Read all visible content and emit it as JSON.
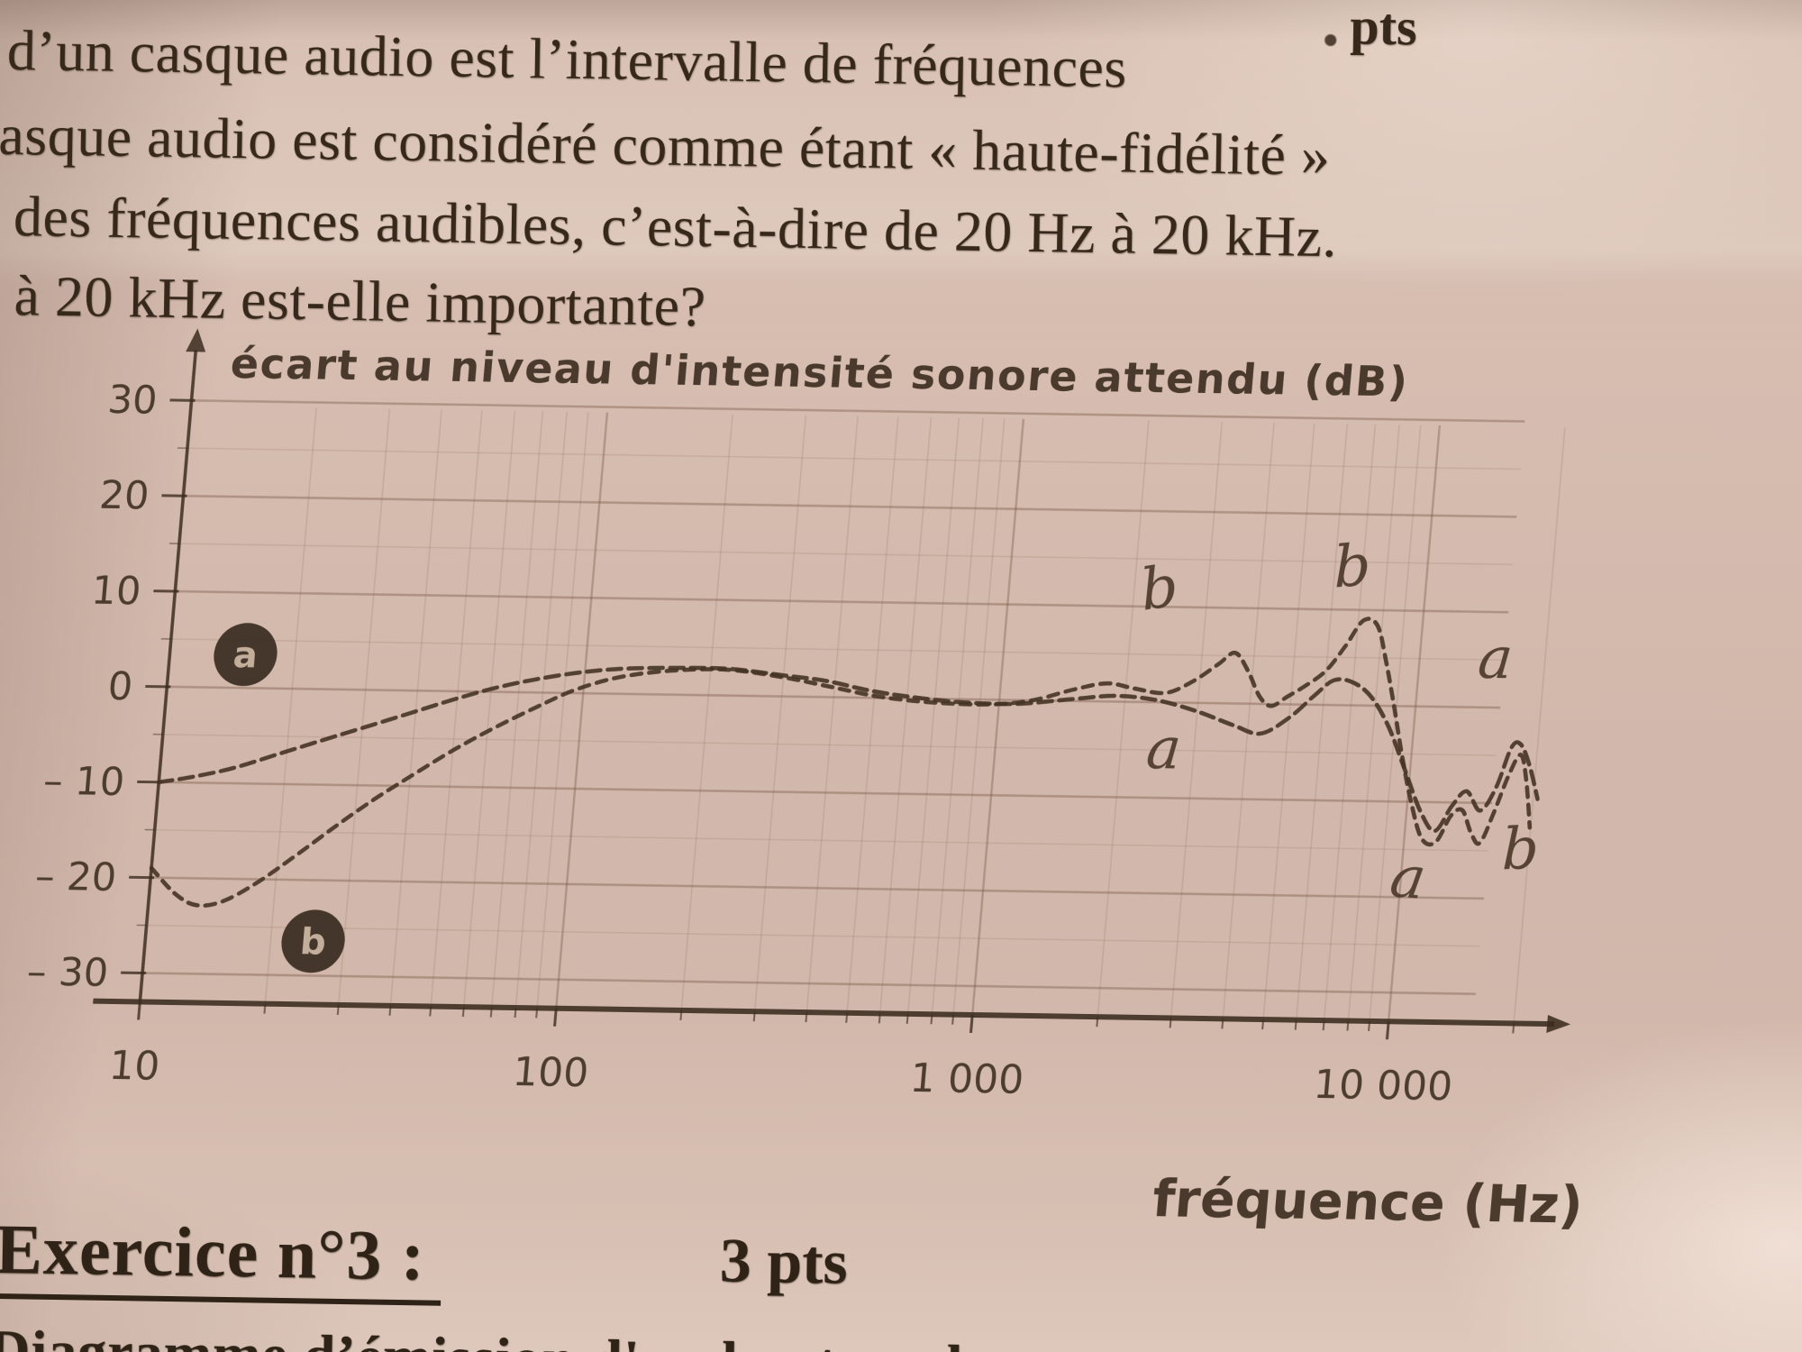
{
  "document": {
    "intro_lines": [
      "d’un casque audio est l’intervalle de fréquences",
      "asque audio est considéré comme étant  « haute-fidélité »",
      "des fréquences audibles, c’est-à-dire de  20 Hz  à  20 kHz.",
      "à  20 kHz  est-elle importante?"
    ],
    "top_right_fragment": "pts",
    "exercise": {
      "title": "Exercice n°3 :",
      "points": "3 pts",
      "next_line_partial": "Diagramme d’émission d'un haut-parleur"
    }
  },
  "chart_data": {
    "type": "line",
    "title": "écart au niveau d'intensité sonore attendu (dB)",
    "xlabel": "fréquence (Hz)",
    "ylabel": "écart au niveau d'intensité sonore attendu (dB)",
    "x_scale": "log",
    "xlim": [
      10,
      25000
    ],
    "ylim": [
      -33,
      33
    ],
    "grid": true,
    "x_ticks": [
      {
        "value": 10,
        "label": "10"
      },
      {
        "value": 100,
        "label": "100"
      },
      {
        "value": 1000,
        "label": "1 000"
      },
      {
        "value": 10000,
        "label": "10 000"
      }
    ],
    "y_ticks": [
      {
        "value": 30,
        "label": "30"
      },
      {
        "value": 20,
        "label": "20"
      },
      {
        "value": 10,
        "label": "10"
      },
      {
        "value": 0,
        "label": "0"
      },
      {
        "value": -10,
        "label": "– 10"
      },
      {
        "value": -20,
        "label": "– 20"
      },
      {
        "value": -30,
        "label": "– 30"
      }
    ],
    "series": [
      {
        "name": "a",
        "legend_marker": {
          "letter": "a",
          "freq": 15.2,
          "db": 3.5
        },
        "points": [
          [
            10,
            -10
          ],
          [
            12,
            -9.4
          ],
          [
            15,
            -8.4
          ],
          [
            19,
            -6.9
          ],
          [
            24,
            -5.4
          ],
          [
            30,
            -4
          ],
          [
            38,
            -2.5
          ],
          [
            48,
            -1
          ],
          [
            60,
            0.3
          ],
          [
            75,
            1.3
          ],
          [
            95,
            2.1
          ],
          [
            120,
            2.6
          ],
          [
            160,
            2.8
          ],
          [
            220,
            2.8
          ],
          [
            300,
            2.2
          ],
          [
            380,
            1.7
          ],
          [
            480,
            0.8
          ],
          [
            600,
            0.2
          ],
          [
            800,
            -0.3
          ],
          [
            1100,
            -0.4
          ],
          [
            1500,
            0.2
          ],
          [
            1900,
            0.6
          ],
          [
            2400,
            0.2
          ],
          [
            3000,
            -0.9
          ],
          [
            3700,
            -2.3
          ],
          [
            4300,
            -3.1
          ],
          [
            5000,
            -1.4
          ],
          [
            5700,
            1.0
          ],
          [
            6300,
            2.6
          ],
          [
            7000,
            2.4
          ],
          [
            7800,
            0.9
          ],
          [
            8700,
            -2.2
          ],
          [
            9700,
            -6.6
          ],
          [
            10800,
            -11
          ],
          [
            11800,
            -13
          ],
          [
            12800,
            -10.4
          ],
          [
            13800,
            -8.8
          ],
          [
            15000,
            -10.8
          ],
          [
            16200,
            -8.4
          ],
          [
            17300,
            -4.2
          ],
          [
            18200,
            -3.8
          ],
          [
            19300,
            -6
          ],
          [
            20500,
            -9.5
          ]
        ]
      },
      {
        "name": "b",
        "legend_marker": {
          "letter": "b",
          "freq": 25.3,
          "db": -26.4
        },
        "points": [
          [
            10,
            -19
          ],
          [
            11.5,
            -21.6
          ],
          [
            13,
            -22.8
          ],
          [
            15,
            -22.4
          ],
          [
            18,
            -20.4
          ],
          [
            22,
            -17.5
          ],
          [
            27,
            -14.4
          ],
          [
            33,
            -11.5
          ],
          [
            40,
            -9
          ],
          [
            50,
            -6.2
          ],
          [
            62,
            -3.8
          ],
          [
            78,
            -1.5
          ],
          [
            95,
            0.3
          ],
          [
            120,
            1.7
          ],
          [
            160,
            2.5
          ],
          [
            220,
            2.7
          ],
          [
            300,
            2
          ],
          [
            400,
            1
          ],
          [
            520,
            0.1
          ],
          [
            700,
            -0.4
          ],
          [
            950,
            -0.5
          ],
          [
            1200,
            0
          ],
          [
            1500,
            1.2
          ],
          [
            1800,
            1.9
          ],
          [
            2100,
            1.4
          ],
          [
            2500,
            1
          ],
          [
            2900,
            2.3
          ],
          [
            3300,
            4.1
          ],
          [
            3600,
            5.3
          ],
          [
            3900,
            3.4
          ],
          [
            4200,
            0.8
          ],
          [
            4500,
            -0.2
          ],
          [
            4900,
            0.8
          ],
          [
            5400,
            2
          ],
          [
            6000,
            3.6
          ],
          [
            6600,
            6.2
          ],
          [
            7200,
            8.9
          ],
          [
            7800,
            8.4
          ],
          [
            8300,
            4.8
          ],
          [
            8900,
            -0.2
          ],
          [
            9500,
            -5.2
          ],
          [
            10200,
            -10
          ],
          [
            11000,
            -13.8
          ],
          [
            11900,
            -14.2
          ],
          [
            12800,
            -11.4
          ],
          [
            13600,
            -10.8
          ],
          [
            14400,
            -13.1
          ],
          [
            15200,
            -14.2
          ],
          [
            16200,
            -11
          ],
          [
            17300,
            -7
          ],
          [
            18300,
            -4.9
          ],
          [
            19100,
            -7.6
          ],
          [
            19900,
            -12.5
          ]
        ]
      }
    ],
    "annotations": [
      {
        "text": "b",
        "freq": 2300,
        "db": 11.8
      },
      {
        "text": "b",
        "freq": 6600,
        "db": 14.4
      },
      {
        "text": "a",
        "freq": 2540,
        "db": -5.0
      },
      {
        "text": "a",
        "freq": 15200,
        "db": 5.0
      },
      {
        "text": "a",
        "freq": 10400,
        "db": -18.1
      },
      {
        "text": "b",
        "freq": 19100,
        "db": -14.9
      }
    ],
    "colors": {
      "ink": "#3b2c1f",
      "grid": "#7a5a46",
      "curve": "#453323",
      "paper": "#d2b8ab",
      "legend_fill": "#3a2c21",
      "legend_letter": "#d9c2ae"
    }
  }
}
